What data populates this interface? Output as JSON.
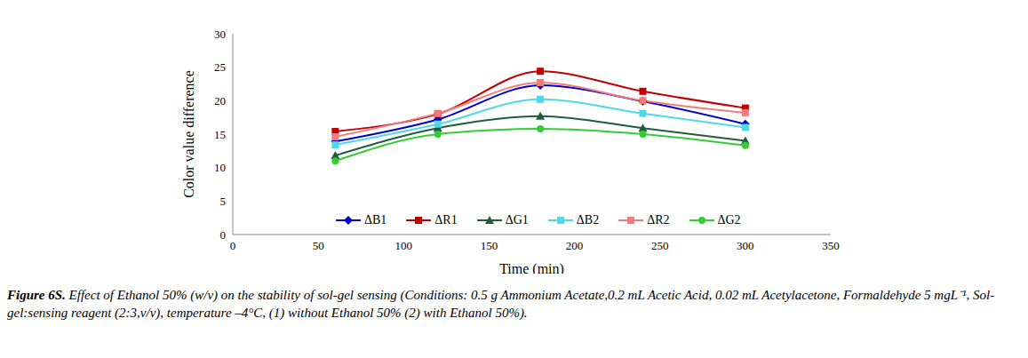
{
  "chart_data": {
    "type": "line",
    "xlabel": "Time (min)",
    "ylabel": "Color value difference",
    "caption_label": "Figure 6S.",
    "caption": "Effect of Ethanol 50% (w/v) on the stability of sol-gel sensing (Conditions: 0.5 g Ammonium Acetate,0.2 mL Acetic Acid, 0.02 mL Acetylacetone, Formaldehyde 5 mgL⁻¹, Sol-gel:sensing reagent (2:3,v/v), temperature –4°C, (1) without Ethanol 50%  (2) with Ethanol 50%).",
    "x": [
      60,
      120,
      180,
      240,
      300
    ],
    "xlim": [
      0,
      350
    ],
    "xticks": [
      0,
      50,
      100,
      150,
      200,
      250,
      300,
      350
    ],
    "ylim": [
      0,
      30
    ],
    "yticks": [
      0,
      5,
      10,
      15,
      20,
      25,
      30
    ],
    "grid": false,
    "legend": "bottom",
    "series": [
      {
        "name": "ΔB1",
        "color": "#0000CC",
        "marker": "diamond",
        "values": [
          13.9,
          17.2,
          22.3,
          19.9,
          16.5
        ]
      },
      {
        "name": "ΔR1",
        "color": "#C00000",
        "marker": "square",
        "values": [
          15.4,
          18.0,
          24.4,
          21.4,
          18.9
        ]
      },
      {
        "name": "ΔG1",
        "color": "#1F5C3A",
        "marker": "triangle",
        "values": [
          11.8,
          15.9,
          17.7,
          15.9,
          14.0
        ]
      },
      {
        "name": "ΔB2",
        "color": "#4DD9E6",
        "marker": "square",
        "values": [
          13.4,
          16.5,
          20.2,
          18.1,
          16.0
        ]
      },
      {
        "name": "ΔR2",
        "color": "#F07C7C",
        "marker": "square",
        "values": [
          14.6,
          18.1,
          22.7,
          20.0,
          18.2
        ]
      },
      {
        "name": "ΔG2",
        "color": "#33CC33",
        "marker": "circle",
        "values": [
          11.0,
          15.0,
          15.8,
          15.0,
          13.3
        ]
      }
    ]
  }
}
